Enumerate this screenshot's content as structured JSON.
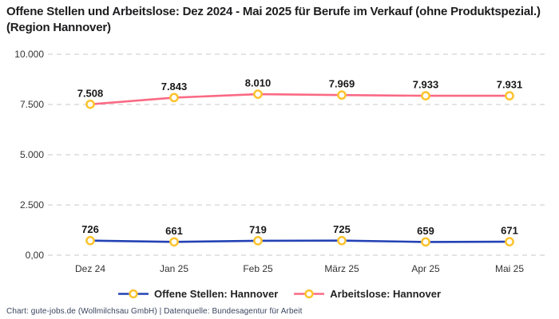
{
  "title": "Offene Stellen und Arbeitslose: Dez 2024 - Mai 2025 für Berufe im Verkauf (ohne Produktspezial.) (Region Hannover)",
  "footer": "Chart: gute-jobs.de (Wollmilchsau GmbH) | Datenquelle: Bundesagentur für Arbeit",
  "colors": {
    "open_positions_line": "#2342b4",
    "unemployed_line": "#fa6a84",
    "marker_ring": "#fcc32d",
    "marker_fill": "#ffffff",
    "gridline": "#c9c9c9",
    "label_text": "#181818"
  },
  "chart_data": {
    "type": "line",
    "categories": [
      "Dez 24",
      "Jan 25",
      "Feb 25",
      "März 25",
      "Apr 25",
      "Mai 25"
    ],
    "series": [
      {
        "name": "Offene Stellen: Hannover",
        "slug": "offene-stellen",
        "color": "#2342b4",
        "values": [
          726,
          661,
          719,
          725,
          659,
          671
        ],
        "labels": [
          "726",
          "661",
          "719",
          "725",
          "659",
          "671"
        ]
      },
      {
        "name": "Arbeitslose: Hannover",
        "slug": "arbeitslose",
        "color": "#fa6a84",
        "values": [
          7508,
          7843,
          8010,
          7969,
          7933,
          7931
        ],
        "labels": [
          "7.508",
          "7.843",
          "8.010",
          "7.969",
          "7.933",
          "7.931"
        ]
      }
    ],
    "y_ticks": [
      {
        "value": 0,
        "label": "0,00"
      },
      {
        "value": 2500,
        "label": "2.500"
      },
      {
        "value": 5000,
        "label": "5.000"
      },
      {
        "value": 7500,
        "label": "7.500"
      },
      {
        "value": 10000,
        "label": "10.000"
      }
    ],
    "ylim": [
      0,
      10000
    ],
    "xlabel": "",
    "ylabel": "",
    "grid": "horizontal-dashed",
    "legend_position": "bottom",
    "marker": {
      "shape": "circle-ring",
      "ring_color": "#fcc32d",
      "fill": "#ffffff"
    }
  }
}
